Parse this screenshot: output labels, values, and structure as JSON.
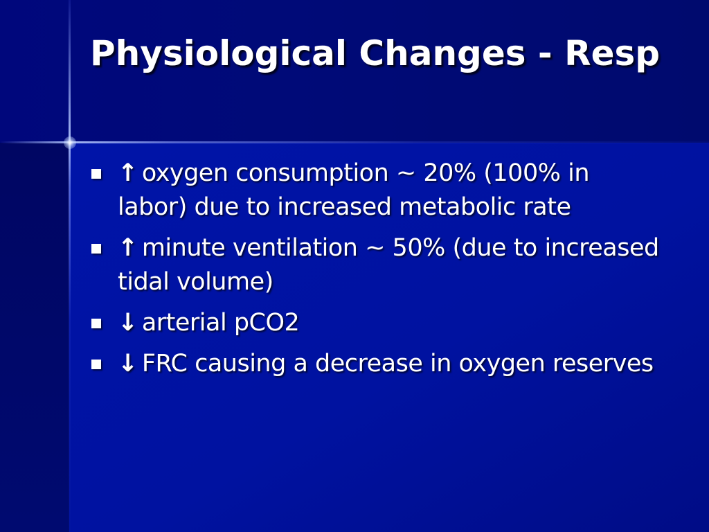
{
  "slide": {
    "title": "Physiological Changes - Resp",
    "colors": {
      "background": "#00087a",
      "title_band": "#00077c",
      "body_area": "#0014a8",
      "text": "#ffffff"
    },
    "bullets": [
      {
        "arrow_icon": "up-arrow-icon",
        "arrow": "↑",
        "text": "oxygen consumption ~ 20% (100% in labor) due to increased metabolic rate"
      },
      {
        "arrow_icon": "up-arrow-icon",
        "arrow": "↑",
        "text": "minute ventilation ~ 50% (due to increased tidal volume)"
      },
      {
        "arrow_icon": "down-arrow-icon",
        "arrow": "↓",
        "text": "arterial pCO2"
      },
      {
        "arrow_icon": "down-arrow-icon",
        "arrow": "↓",
        "text": "FRC causing a decrease in oxygen reserves"
      }
    ]
  }
}
